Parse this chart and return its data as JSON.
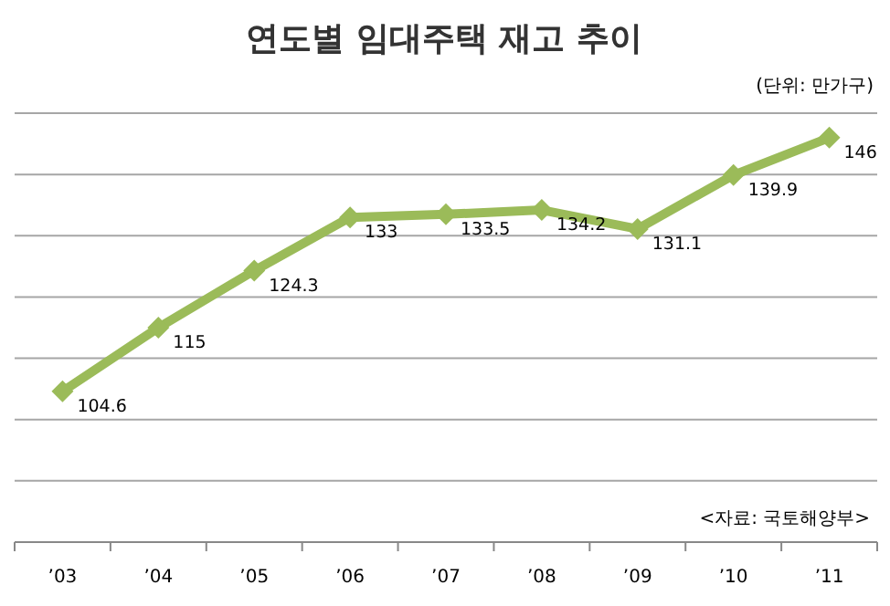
{
  "chart_data": {
    "type": "line",
    "title": "연도별 임대주택 재고 추이",
    "subtitle": "(단위: 만가구)",
    "annotations": [
      "<자료: 국토해양부>"
    ],
    "categories": [
      "’03",
      "’04",
      "’05",
      "’06",
      "’07",
      "’08",
      "’09",
      "’10",
      "’11"
    ],
    "series": [
      {
        "color": "#9bbb59",
        "values": [
          104.6,
          115,
          124.3,
          133,
          133.5,
          134.2,
          131.1,
          139.9,
          146
        ]
      }
    ],
    "ylim": [
      80,
      150
    ],
    "yticks": [
      {
        "value": 80,
        "label": null
      },
      {
        "value": 90,
        "label": null
      },
      {
        "value": 100,
        "label": null
      },
      {
        "value": 110,
        "label": null
      },
      {
        "value": 120,
        "label": null
      },
      {
        "value": 130,
        "label": null
      },
      {
        "value": 140,
        "label": null
      },
      {
        "value": 150,
        "label": null
      }
    ],
    "tick_labels": "x",
    "grid": "y",
    "data_labels": true,
    "marker": "diamond",
    "line_style": "solid"
  }
}
